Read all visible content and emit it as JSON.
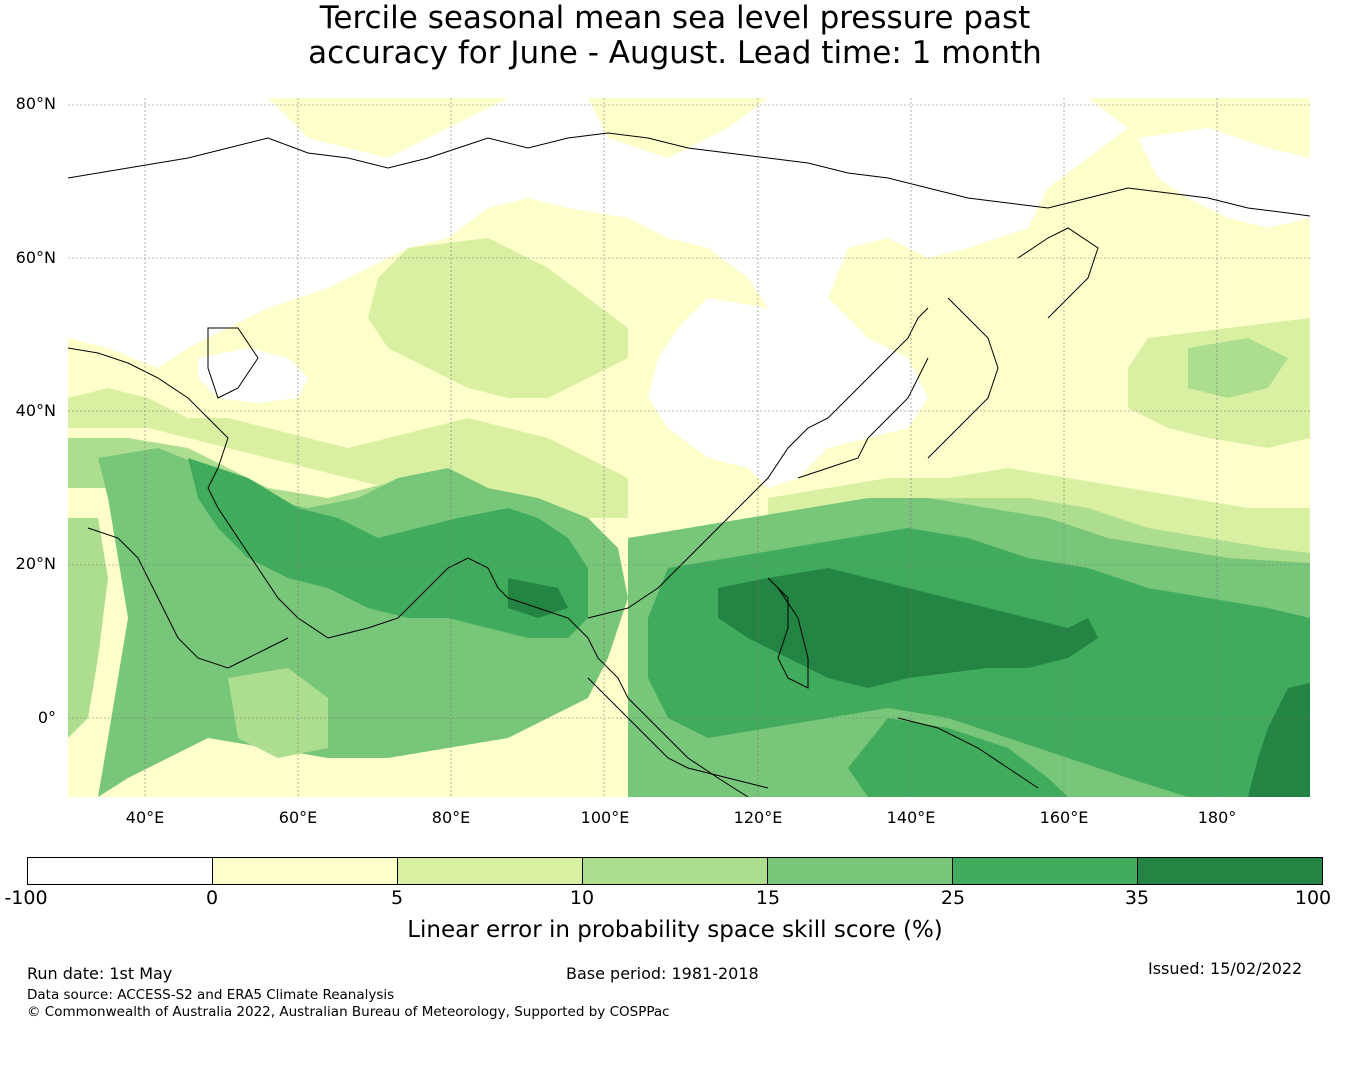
{
  "title": {
    "line1": "Tercile seasonal mean sea level pressure past",
    "line2": "accuracy for June - August. Lead time: 1 month"
  },
  "map": {
    "lat_labels": [
      "80°N",
      "60°N",
      "40°N",
      "20°N",
      "0°"
    ],
    "lon_labels": [
      "40°E",
      "60°E",
      "80°E",
      "100°E",
      "120°E",
      "140°E",
      "160°E",
      "180°"
    ],
    "extent": {
      "lon": [
        30,
        192
      ],
      "lat": [
        -10,
        81
      ]
    }
  },
  "colorbar": {
    "label": "Linear error in probability space skill score (%)",
    "ticks": [
      "-100",
      "0",
      "5",
      "10",
      "15",
      "25",
      "35",
      "100"
    ],
    "colors": [
      "#ffffff",
      "#ffffcc",
      "#d9f0a3",
      "#addd8e",
      "#78c679",
      "#41ab5d",
      "#238443"
    ]
  },
  "footer": {
    "run_date": "Run date: 1st May",
    "base_period": "Base period: 1981-2018",
    "issued": "Issued: 15/02/2022",
    "data_source": "Data source: ACCESS-S2 and ERA5 Climate Reanalysis",
    "copyright": "© Commonwealth of Australia 2022, Australian Bureau of Meteorology, Supported by COSPPac"
  }
}
